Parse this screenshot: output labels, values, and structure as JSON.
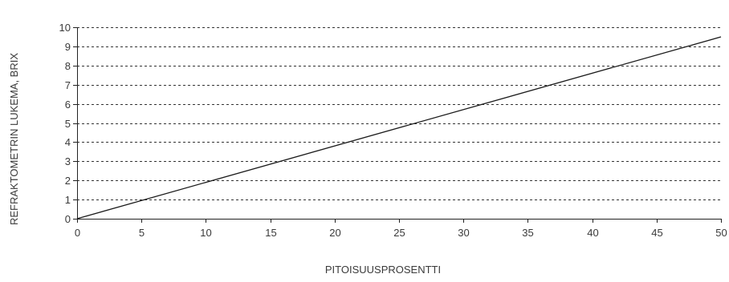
{
  "chart_data": {
    "type": "line",
    "title": "",
    "xlabel": "PITOISUUSPROSENTTI",
    "ylabel": "REFRAKTOMETRIN LUKEMA, BRIX",
    "xlim": [
      0,
      50
    ],
    "ylim": [
      0,
      10
    ],
    "x_ticks": [
      0,
      5,
      10,
      15,
      20,
      25,
      30,
      35,
      40,
      45,
      50
    ],
    "y_ticks": [
      0,
      1,
      2,
      3,
      4,
      5,
      6,
      7,
      8,
      9,
      10
    ],
    "grid": "horizontal-dashed",
    "series": [
      {
        "x": [
          0,
          50
        ],
        "y": [
          0,
          9.5
        ]
      }
    ],
    "line_color": "#1a1a1a",
    "grid_color": "#333333"
  }
}
